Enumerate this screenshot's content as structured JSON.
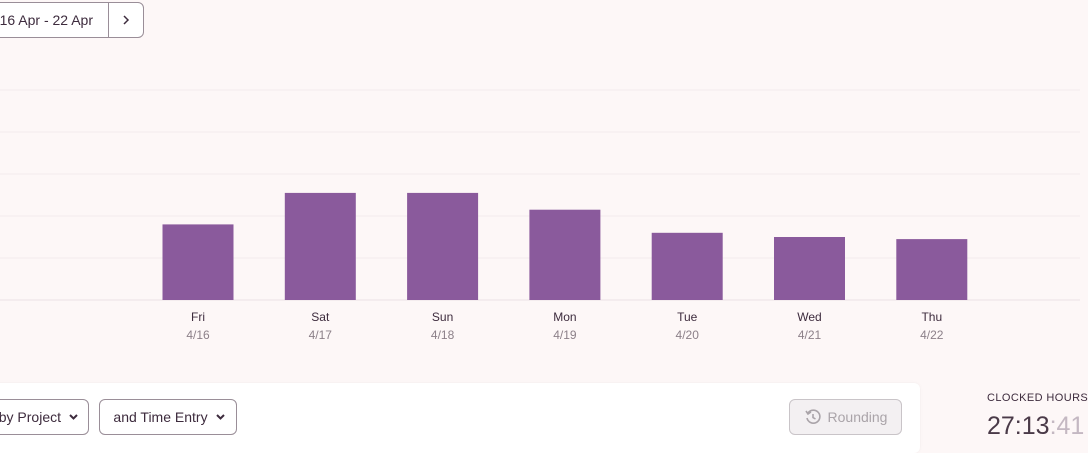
{
  "toolbar": {
    "date_range": "16 Apr - 22 Apr"
  },
  "chart_data": {
    "type": "bar",
    "categories": [
      "Fri",
      "Sat",
      "Sun",
      "Mon",
      "Tue",
      "Wed",
      "Thu"
    ],
    "dates": [
      "4/16",
      "4/17",
      "4/18",
      "4/19",
      "4/20",
      "4/21",
      "4/22"
    ],
    "values": [
      3.6,
      5.1,
      5.1,
      4.3,
      3.2,
      3.0,
      2.9
    ],
    "color": "#8a5a9c",
    "ylim": [
      0,
      10
    ],
    "gridlines": [
      0,
      2,
      4,
      6,
      8,
      10
    ],
    "grid": true
  },
  "report": {
    "group_by": [
      "by Project",
      "and Time Entry"
    ],
    "rounding": "Rounding"
  },
  "summary": {
    "label": "CLOCKED HOURS",
    "hours_minutes": "27:13",
    "seconds": ":41"
  }
}
